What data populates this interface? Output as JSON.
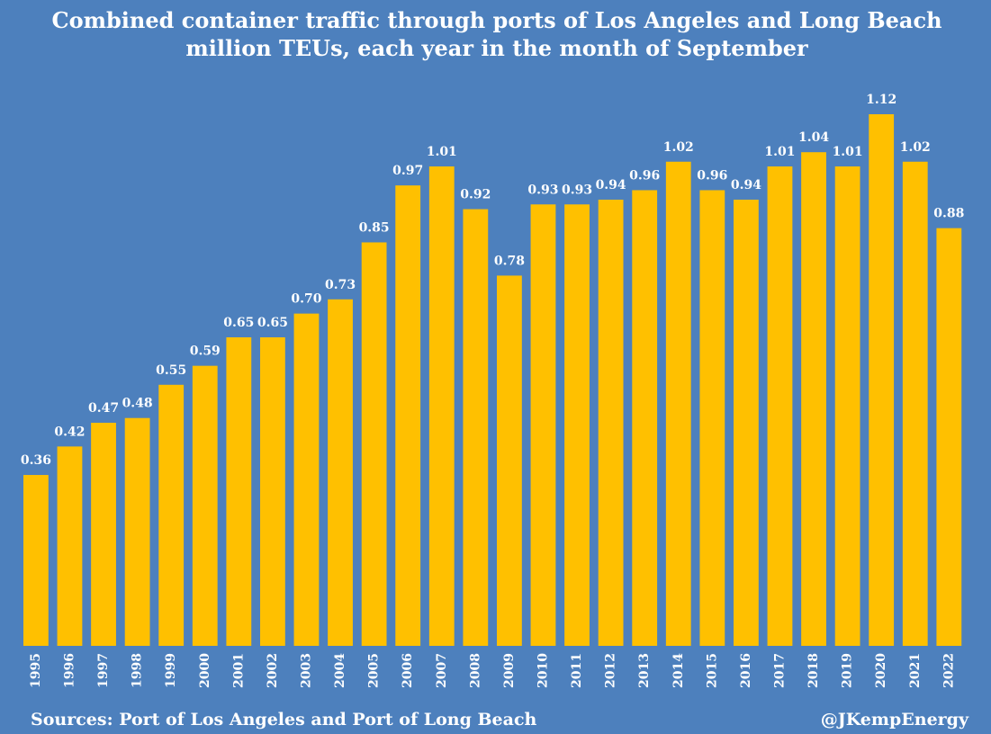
{
  "chart_data": {
    "type": "bar",
    "title": "Combined container traffic through ports of Los Angeles and Long Beach",
    "subtitle": "million TEUs, each year in the month of September",
    "categories": [
      "1995",
      "1996",
      "1997",
      "1998",
      "1999",
      "2000",
      "2001",
      "2002",
      "2003",
      "2004",
      "2005",
      "2006",
      "2007",
      "2008",
      "2009",
      "2010",
      "2011",
      "2012",
      "2013",
      "2014",
      "2015",
      "2016",
      "2017",
      "2018",
      "2019",
      "2020",
      "2021",
      "2022"
    ],
    "values": [
      0.36,
      0.42,
      0.47,
      0.48,
      0.55,
      0.59,
      0.65,
      0.65,
      0.7,
      0.73,
      0.85,
      0.97,
      1.01,
      0.92,
      0.78,
      0.93,
      0.93,
      0.94,
      0.96,
      1.02,
      0.96,
      0.94,
      1.01,
      1.04,
      1.01,
      1.12,
      1.02,
      0.88
    ],
    "value_labels": [
      "0.36",
      "0.42",
      "0.47",
      "0.48",
      "0.55",
      "0.59",
      "0.65",
      "0.65",
      "0.70",
      "0.73",
      "0.85",
      "0.97",
      "1.01",
      "0.92",
      "0.78",
      "0.93",
      "0.93",
      "0.94",
      "0.96",
      "1.02",
      "0.96",
      "0.94",
      "1.01",
      "1.04",
      "1.01",
      "1.12",
      "1.02",
      "0.88"
    ],
    "ylim": [
      0,
      1.12
    ],
    "grid": false,
    "bar_color": "#ffc000",
    "background_color": "#4d80bd"
  },
  "footer": {
    "source": "Sources: Port of Los Angeles and Port of Long Beach",
    "credit": "@JKempEnergy"
  }
}
